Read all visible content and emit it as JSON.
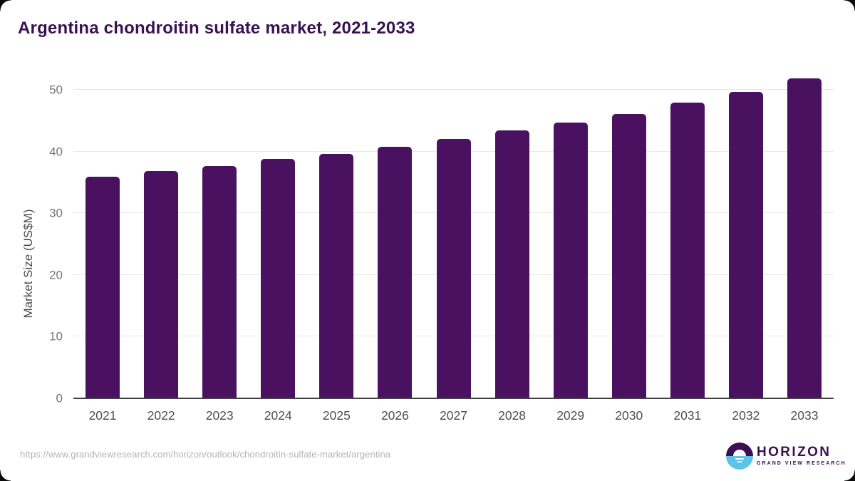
{
  "title": "Argentina chondroitin sulfate market, 2021-2033",
  "chart_data": {
    "type": "bar",
    "title": "Argentina chondroitin sulfate market, 2021-2033",
    "categories": [
      "2021",
      "2022",
      "2023",
      "2024",
      "2025",
      "2026",
      "2027",
      "2028",
      "2029",
      "2030",
      "2031",
      "2032",
      "2033"
    ],
    "values": [
      35.9,
      36.8,
      37.7,
      38.8,
      39.6,
      40.8,
      42.0,
      43.4,
      44.7,
      46.1,
      47.9,
      49.7,
      51.8
    ],
    "xlabel": "",
    "ylabel": "Market Size (US$M)",
    "ylim": [
      0,
      50
    ],
    "yticks": [
      0,
      10,
      20,
      30,
      40,
      50
    ],
    "grid": true,
    "legend_position": "none",
    "bar_color": "#4a1160"
  },
  "footer": {
    "source_url": "https://www.grandviewresearch.com/horizon/outlook/chondroitin-sulfate-market/argentina",
    "logo": {
      "brand": "HORIZON",
      "sub_brand": "GRAND VIEW RESEARCH"
    }
  },
  "icons": {
    "logo_mark": "horizon-sun-over-water-icon"
  },
  "colors": {
    "title_text": "#3a1150",
    "bar_fill": "#4a1160",
    "axis_line": "#404040",
    "gridline": "#e8e8e8",
    "y_tick_label": "#757575",
    "x_tick_label": "#4f4f4f",
    "y_axis_title": "#4a4a4a",
    "url_text": "#b3b3b3",
    "logo_purple": "#3b1053",
    "logo_blue": "#5cc3ea",
    "background": "#ffffff"
  }
}
